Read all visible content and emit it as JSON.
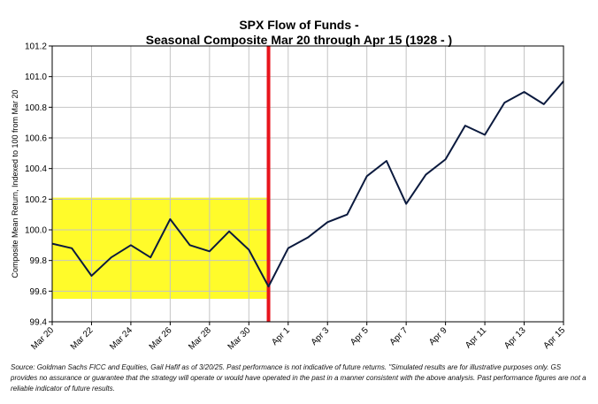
{
  "chart_data": {
    "type": "line",
    "title_lines": [
      "SPX Flow of Funds -",
      "Seasonal Composite Mar 20 through Apr 15 (1928 - )"
    ],
    "xlabel": "",
    "ylabel": "Composite Mean Return, Indexed to 100 from Mar 20",
    "ylim": [
      99.4,
      101.2
    ],
    "yticks": [
      "99.4",
      "99.6",
      "99.8",
      "100.0",
      "100.2",
      "100.4",
      "100.6",
      "100.8",
      "101.0",
      "101.2"
    ],
    "grid": true,
    "x_tick_labels": [
      "Mar 20",
      "Mar 22",
      "Mar 24",
      "Mar 26",
      "Mar 28",
      "Mar 30",
      "Apr 1",
      "Apr 3",
      "Apr 5",
      "Apr 7",
      "Apr 9",
      "Apr 11",
      "Apr 13",
      "Apr 15"
    ],
    "series": [
      {
        "name": "Seasonal Composite",
        "color": "#0b1a3e",
        "values": [
          99.91,
          99.88,
          99.7,
          99.82,
          99.9,
          99.82,
          100.07,
          99.9,
          99.86,
          99.99,
          99.87,
          99.63,
          99.88,
          99.95,
          100.05,
          100.1,
          100.35,
          100.45,
          100.17,
          100.36,
          100.46,
          100.68,
          100.62,
          100.83,
          100.9,
          100.82,
          100.97
        ]
      }
    ],
    "highlight_box": {
      "x_start_index": 0,
      "x_end_index": 11,
      "y_low": 99.55,
      "y_high": 100.21,
      "color": "#fffb2a"
    },
    "vertical_marker": {
      "x_index": 11,
      "color": "#e8141c"
    }
  },
  "footnote": "Source: Goldman Sachs FICC and Equities, Gail Hafif as of 3/20/25. Past performance is not indicative of future returns. \"Simulated results are for illustrative purposes only. GS provides no assurance or guarantee that the strategy will operate or would have operated in the past in a manner consistent with the above analysis. Past performance figures are not a reliable indicator of future results."
}
